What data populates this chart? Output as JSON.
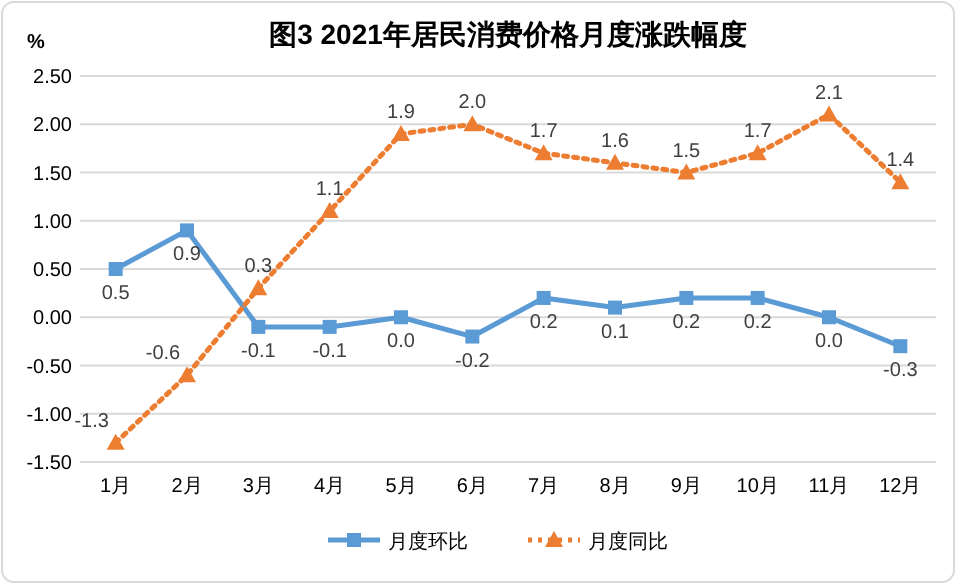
{
  "chart_data": {
    "type": "line",
    "title": "图3  2021年居民消费价格月度涨跌幅度",
    "ylabel": "%",
    "categories": [
      "1月",
      "2月",
      "3月",
      "4月",
      "5月",
      "6月",
      "7月",
      "8月",
      "9月",
      "10月",
      "11月",
      "12月"
    ],
    "series": [
      {
        "name": "月度环比",
        "color": "#5b9bd5",
        "marker": "square",
        "line_style": "solid",
        "values": [
          0.5,
          0.9,
          -0.1,
          -0.1,
          0.0,
          -0.2,
          0.2,
          0.1,
          0.2,
          0.2,
          0.0,
          -0.3
        ],
        "value_labels": [
          "0.5",
          "0.9",
          "-0.1",
          "-0.1",
          "0.0",
          "-0.2",
          "0.2",
          "0.1",
          "0.2",
          "0.2",
          "0.0",
          "-0.3"
        ]
      },
      {
        "name": "月度同比",
        "color": "#ed7d31",
        "marker": "triangle",
        "line_style": "dotted",
        "values": [
          -1.3,
          -0.6,
          0.3,
          1.1,
          1.9,
          2.0,
          1.7,
          1.6,
          1.5,
          1.7,
          2.1,
          1.4
        ],
        "value_labels": [
          "-1.3",
          "-0.6",
          "0.3",
          "1.1",
          "1.9",
          "2.0",
          "1.7",
          "1.6",
          "1.5",
          "1.7",
          "2.1",
          "1.4"
        ]
      }
    ],
    "ylim": [
      -1.5,
      2.5
    ],
    "yticks": [
      {
        "value": -1.5,
        "label": "-1.50"
      },
      {
        "value": -1.0,
        "label": "-1.00"
      },
      {
        "value": -0.5,
        "label": "-0.50"
      },
      {
        "value": 0,
        "label": "0.00"
      },
      {
        "value": 0.5,
        "label": "0.50"
      },
      {
        "value": 1.0,
        "label": "1.00"
      },
      {
        "value": 1.5,
        "label": "1.50"
      },
      {
        "value": 2.0,
        "label": "2.00"
      },
      {
        "value": 2.5,
        "label": "2.50"
      }
    ],
    "grid": "y",
    "legend": "bottom"
  }
}
